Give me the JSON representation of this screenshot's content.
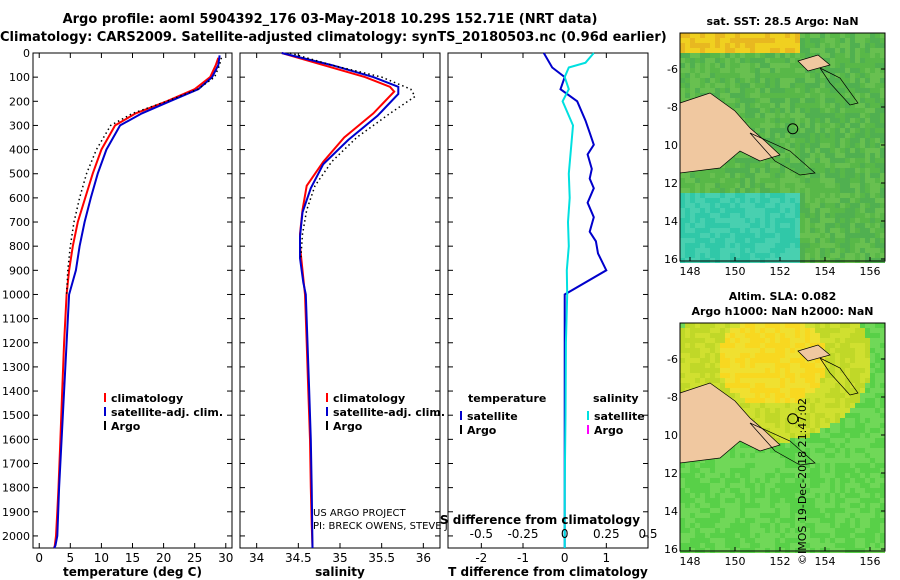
{
  "header": {
    "line1": "Argo profile: aoml 5904392_176 03-May-2018 10.29S 152.71E (NRT data)",
    "line2": "Climatology: CARS2009. Satellite-adjusted climatology: synTS_20180503.nc (0.96d earlier)"
  },
  "chart_data": [
    {
      "type": "line",
      "id": "temperature",
      "xlabel": "temperature (deg C)",
      "ylabel": "",
      "xlim": [
        -1,
        31
      ],
      "ylim": [
        2050,
        0
      ],
      "xticks": [
        0,
        5,
        10,
        15,
        20,
        25,
        30
      ],
      "xtick_labels": [
        "0",
        "5",
        "10",
        "15",
        "20",
        "25",
        "30"
      ],
      "yticks": [
        0,
        100,
        200,
        300,
        400,
        500,
        600,
        700,
        800,
        900,
        1000,
        1100,
        1200,
        1300,
        1400,
        1500,
        1600,
        1700,
        1800,
        1900,
        2000
      ],
      "ytick_labels": [
        "0",
        "100",
        "200",
        "300",
        "400",
        "500",
        "600",
        "700",
        "800",
        "900",
        "1000",
        "1100",
        "1200",
        "1300",
        "1400",
        "1500",
        "1600",
        "1700",
        "1800",
        "1900",
        "2000"
      ],
      "legend": [
        {
          "label": "climatology",
          "color": "#ff0000"
        },
        {
          "label": "satellite-adj. clim.",
          "color": "#0000cc"
        },
        {
          "label": "Argo",
          "color": "#000000"
        }
      ],
      "series": [
        {
          "name": "climatology",
          "color": "#ff0000",
          "style": "solid",
          "x": [
            28.8,
            28.4,
            27.5,
            25.0,
            20.5,
            15.5,
            12.2,
            10.0,
            8.6,
            7.4,
            6.2,
            5.4,
            4.8,
            4.4,
            4.0,
            3.7,
            3.4,
            3.1,
            2.9,
            2.7,
            2.5,
            2.4
          ],
          "y": [
            20,
            50,
            100,
            150,
            200,
            250,
            300,
            400,
            500,
            600,
            700,
            800,
            900,
            1000,
            1200,
            1400,
            1600,
            1800,
            1900,
            2000,
            2040,
            2050
          ]
        },
        {
          "name": "satellite-adj. clim.",
          "color": "#0000cc",
          "style": "solid",
          "x": [
            29.0,
            28.8,
            27.8,
            25.6,
            21.0,
            16.5,
            13.0,
            10.8,
            9.4,
            8.3,
            7.3,
            6.5,
            5.9,
            4.8,
            4.4,
            4.0,
            3.6,
            3.2,
            2.9,
            2.6,
            2.4
          ],
          "y": [
            10,
            50,
            100,
            150,
            200,
            250,
            300,
            400,
            500,
            600,
            700,
            800,
            900,
            1000,
            1200,
            1400,
            1600,
            1800,
            2000,
            2040,
            2050
          ]
        },
        {
          "name": "Argo",
          "color": "#000000",
          "style": "dotted",
          "x": [
            29.3,
            29.0,
            28.2,
            25.5,
            20.5,
            15.0,
            11.5,
            9.2,
            7.6,
            6.5,
            5.6,
            5.0,
            4.6,
            4.4
          ],
          "y": [
            20,
            50,
            100,
            150,
            200,
            250,
            300,
            400,
            500,
            600,
            700,
            800,
            900,
            1000
          ]
        }
      ]
    },
    {
      "type": "line",
      "id": "salinity",
      "xlabel": "salinity",
      "xlim": [
        33.8,
        36.2
      ],
      "ylim": [
        2050,
        0
      ],
      "xticks": [
        34,
        34.5,
        35,
        35.5,
        36
      ],
      "xtick_labels": [
        "34",
        "34.5",
        "35",
        "35.5",
        "36"
      ],
      "legend": [
        {
          "label": "climatology",
          "color": "#ff0000"
        },
        {
          "label": "satellite-adj. clim.",
          "color": "#0000cc"
        },
        {
          "label": "Argo",
          "color": "#000000"
        }
      ],
      "credit": [
        "US ARGO PROJECT",
        "PI: BRECK OWENS, STEVE JAYNE, P.E. ROBBINS"
      ],
      "series": [
        {
          "name": "climatology",
          "color": "#ff0000",
          "style": "solid",
          "x": [
            34.3,
            34.8,
            35.3,
            35.6,
            35.65,
            35.4,
            35.05,
            34.8,
            34.6,
            34.55,
            34.52,
            34.52,
            34.55,
            34.58,
            34.6,
            34.62,
            34.64,
            34.65,
            34.66,
            34.67
          ],
          "y": [
            0,
            50,
            100,
            140,
            160,
            250,
            350,
            450,
            550,
            650,
            750,
            800,
            900,
            1000,
            1200,
            1400,
            1600,
            1800,
            1950,
            2050
          ]
        },
        {
          "name": "satellite-adj. clim.",
          "color": "#0000cc",
          "style": "solid",
          "x": [
            34.3,
            34.9,
            35.4,
            35.7,
            35.7,
            35.45,
            35.1,
            34.8,
            34.65,
            34.55,
            34.52,
            34.52,
            34.56,
            34.59,
            34.61,
            34.63,
            34.65,
            34.66,
            34.67
          ],
          "y": [
            0,
            50,
            100,
            140,
            170,
            260,
            360,
            460,
            560,
            660,
            760,
            850,
            950,
            1000,
            1200,
            1400,
            1600,
            1800,
            2050
          ]
        },
        {
          "name": "Argo",
          "color": "#000000",
          "style": "dotted",
          "x": [
            34.4,
            34.9,
            35.5,
            35.85,
            35.9,
            35.6,
            35.2,
            34.9,
            34.7,
            34.6,
            34.55,
            34.53
          ],
          "y": [
            0,
            50,
            100,
            150,
            180,
            250,
            350,
            450,
            550,
            650,
            750,
            850
          ]
        }
      ]
    },
    {
      "type": "line",
      "id": "difference",
      "xlabel": "T difference from climatology",
      "top_label": "S difference from climatology",
      "xlim": [
        -2.8,
        2.0
      ],
      "ylim": [
        2050,
        0
      ],
      "xticks": [
        -2,
        -1,
        0,
        1
      ],
      "xtick_labels": [
        "-2",
        "-1",
        "0",
        "1"
      ],
      "top_ticks": [
        "-0.5",
        "-0.25",
        "0",
        "0.25",
        "0.5"
      ],
      "top_tick_positions": [
        -2,
        -1,
        0,
        1,
        2
      ],
      "legend_left_title": "temperature",
      "legend_right_title": "salinity",
      "legend": [
        {
          "label": "satellite",
          "color": "#0000cc",
          "side": "left"
        },
        {
          "label": "Argo",
          "color": "#000000",
          "side": "left"
        },
        {
          "label": "satellite",
          "color": "#00e0e0",
          "side": "right"
        },
        {
          "label": "Argo",
          "color": "#ff00ff",
          "side": "right"
        }
      ],
      "series": [
        {
          "name": "temperature satellite",
          "color": "#0000cc",
          "style": "solid",
          "x": [
            -0.5,
            -0.3,
            0.0,
            -0.1,
            0.3,
            0.5,
            0.6,
            0.7,
            0.55,
            0.65,
            0.6,
            0.7,
            0.55,
            0.7,
            0.6,
            0.75,
            0.8,
            1.0,
            0.0,
            0.0,
            0.0
          ],
          "y": [
            0,
            60,
            100,
            150,
            200,
            280,
            330,
            380,
            420,
            480,
            520,
            560,
            620,
            680,
            740,
            780,
            830,
            900,
            1000,
            1500,
            2050
          ]
        },
        {
          "name": "salinity satellite",
          "color": "#00e0e0",
          "style": "solid",
          "x": [
            0.7,
            0.5,
            0.1,
            0.0,
            0.1,
            -0.05,
            0.2,
            0.15,
            0.1,
            0.12,
            0.08,
            0.1,
            0.05,
            0.06,
            0.03,
            0.02,
            0.0,
            0.0
          ],
          "y": [
            0,
            40,
            60,
            100,
            150,
            200,
            300,
            400,
            500,
            600,
            700,
            800,
            900,
            1000,
            1200,
            1500,
            1800,
            2050
          ]
        }
      ]
    }
  ],
  "maps": [
    {
      "id": "sst",
      "title1": "sat. SST: 28.5 Argo: NaN",
      "title2": "",
      "xticks": [
        "148",
        "150",
        "152",
        "154",
        "156"
      ],
      "yticks": [
        "-6",
        "-8",
        "-10",
        "-12",
        "-14",
        "-16"
      ]
    },
    {
      "id": "sla",
      "title1": "Altim. SLA: 0.082",
      "title2": "Argo h1000: NaN h2000: NaN",
      "xticks": [
        "148",
        "150",
        "152",
        "154",
        "156"
      ],
      "yticks": [
        "-6",
        "-8",
        "-10",
        "-12",
        "-14",
        "-16"
      ]
    }
  ],
  "footer": {
    "side_text": "©IMOS 19-Dec-2018 21:47:02"
  }
}
